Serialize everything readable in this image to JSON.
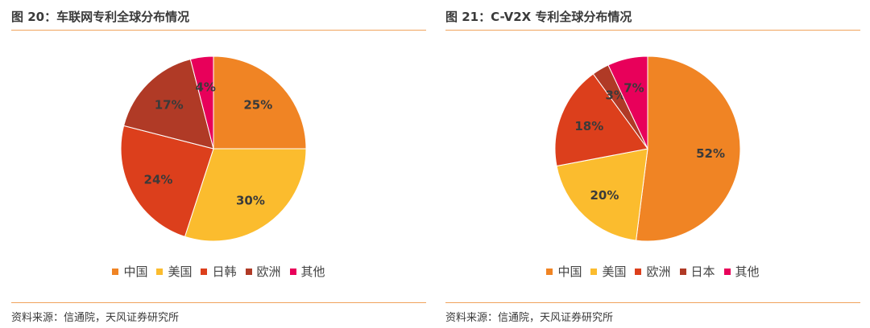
{
  "source_note": "资料来源：信通院，天风证券研究所",
  "chart_data": [
    {
      "type": "pie",
      "title": "图 20：车联网专利全球分布情况",
      "categories": [
        "中国",
        "美国",
        "日韩",
        "欧洲",
        "其他"
      ],
      "values": [
        25,
        30,
        24,
        17,
        4
      ],
      "labels": [
        "25%",
        "30%",
        "24%",
        "17%",
        "4%"
      ],
      "colors": [
        "#f08424",
        "#fbbc2e",
        "#dc3f1c",
        "#b03a26",
        "#e8005a"
      ],
      "legend": "bottom"
    },
    {
      "type": "pie",
      "title": "图 21：C-V2X 专利全球分布情况",
      "categories": [
        "中国",
        "美国",
        "欧洲",
        "日本",
        "其他"
      ],
      "values": [
        52,
        20,
        18,
        3,
        7
      ],
      "labels": [
        "52%",
        "20%",
        "18%",
        "3%",
        "7%"
      ],
      "colors": [
        "#f08424",
        "#fbbc2e",
        "#dc3f1c",
        "#b03a26",
        "#e8005a"
      ],
      "legend": "bottom"
    }
  ]
}
